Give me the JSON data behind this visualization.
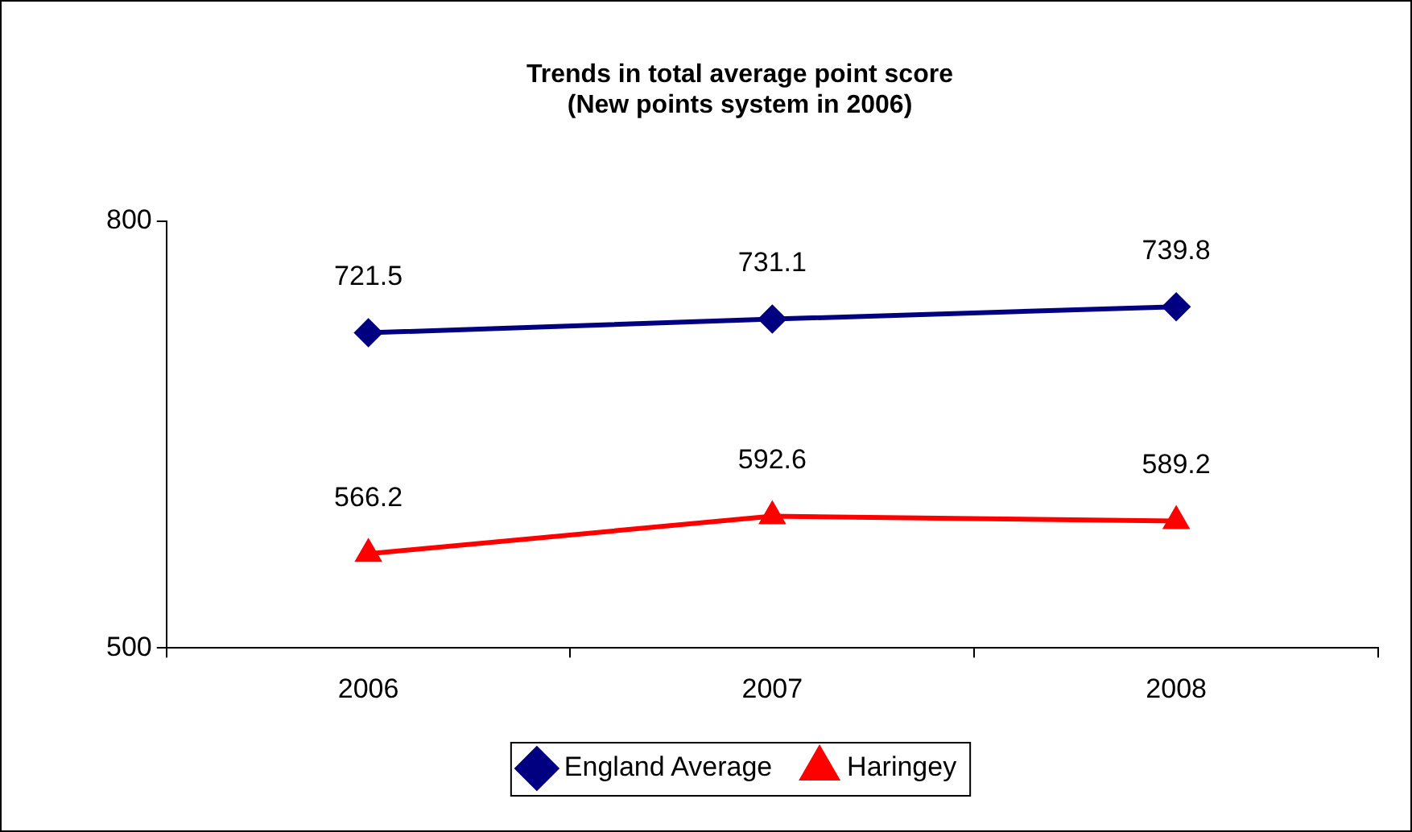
{
  "chart_data": {
    "type": "line",
    "title": "Trends in total average point score\n(New points system in 2006)",
    "categories": [
      "2006",
      "2007",
      "2008"
    ],
    "series": [
      {
        "name": "England Average",
        "color": "#000080",
        "marker": "diamond",
        "values": [
          721.5,
          731.1,
          739.8
        ]
      },
      {
        "name": "Haringey",
        "color": "#ff0000",
        "marker": "triangle",
        "values": [
          566.2,
          592.6,
          589.2
        ]
      }
    ],
    "ylim": [
      500,
      800
    ],
    "yticks": [
      500,
      800
    ],
    "grid": false,
    "legend": "bottom",
    "data_labels": true
  }
}
